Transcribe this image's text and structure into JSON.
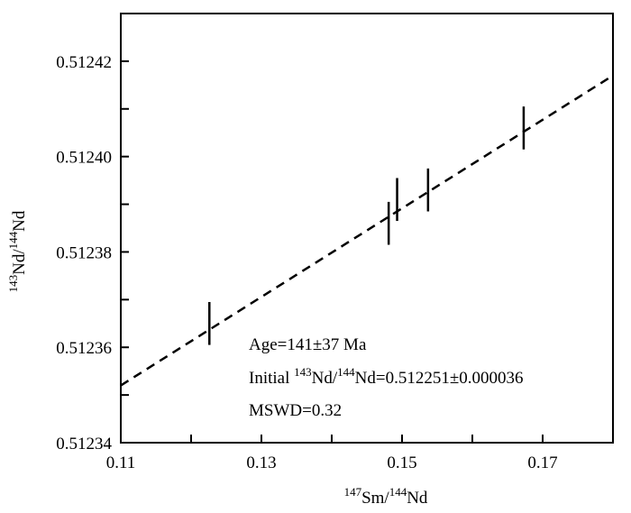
{
  "chart_data": {
    "type": "scatter",
    "title": "",
    "xlabel": {
      "sup1": "147",
      "main1": "Sm/",
      "sup2": "144",
      "main2": "Nd"
    },
    "ylabel": {
      "sup1": "143",
      "main1": "Nd/",
      "sup2": "144",
      "main2": "Nd"
    },
    "xlim": [
      0.11,
      0.18
    ],
    "ylim": [
      0.51234,
      0.51243
    ],
    "x_ticks": [
      0.11,
      0.13,
      0.15,
      0.17
    ],
    "x_tick_labels": [
      "0.11",
      "0.13",
      "0.15",
      "0.17"
    ],
    "y_ticks": [
      0.51234,
      0.51236,
      0.51238,
      0.5124,
      0.51242
    ],
    "y_tick_labels": [
      "0.51234",
      "0.51236",
      "0.51238",
      "0.51240",
      "0.51242"
    ],
    "grid": false,
    "points": [
      {
        "x": 0.1226,
        "y": 0.512365,
        "yerr": 4.5e-06
      },
      {
        "x": 0.1481,
        "y": 0.512386,
        "yerr": 4.5e-06
      },
      {
        "x": 0.1493,
        "y": 0.512391,
        "yerr": 4.5e-06
      },
      {
        "x": 0.1537,
        "y": 0.512393,
        "yerr": 4.5e-06
      },
      {
        "x": 0.1673,
        "y": 0.512406,
        "yerr": 4.5e-06
      }
    ],
    "fit_line": {
      "style": "dashed",
      "x": [
        0.11,
        0.18
      ],
      "y": [
        0.512352,
        0.512417
      ]
    },
    "annotations": {
      "age": "Age=141±37 Ma",
      "initial_prefix": "Initial ",
      "initial_sup1": "143",
      "initial_mid": "Nd/",
      "initial_sup2": "144",
      "initial_suffix": "Nd=0.512251±0.000036",
      "mswd": "MSWD=0.32"
    }
  }
}
